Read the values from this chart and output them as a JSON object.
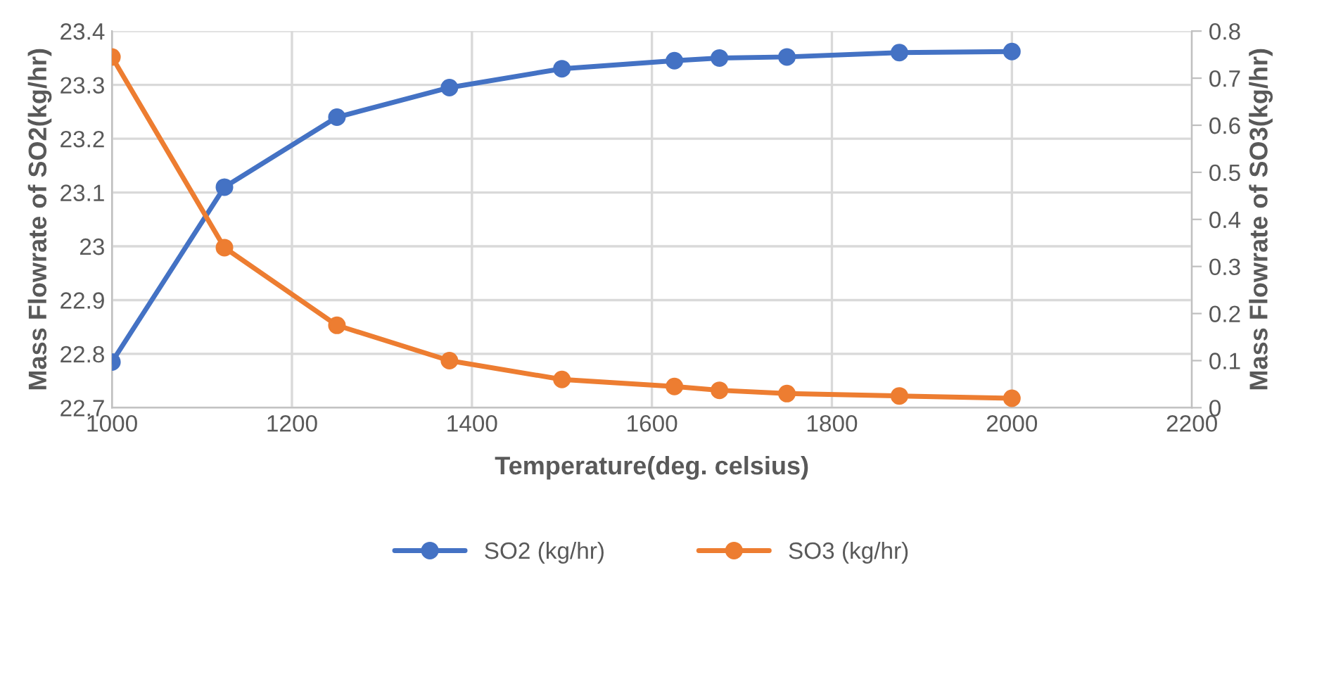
{
  "chart_data": {
    "type": "line",
    "xlabel": "Temperature(deg. celsius)",
    "ylabel": "Mass Flowrate of SO2(kg/hr)",
    "y2label": "Mass Flowrate of SO3(kg/hr)",
    "x": [
      1000,
      1125,
      1250,
      1375,
      1500,
      1625,
      1675,
      1750,
      1875,
      2000
    ],
    "series": [
      {
        "name": "SO2 (kg/hr)",
        "color": "#4472c4",
        "values": [
          22.785,
          23.11,
          23.24,
          23.295,
          23.33,
          23.345,
          23.35,
          23.352,
          23.36,
          23.362
        ]
      },
      {
        "name": "SO3 (kg/hr)",
        "color": "#ed7d31",
        "axis": "y2",
        "values": [
          0.745,
          0.34,
          0.175,
          0.1,
          0.06,
          0.045,
          0.037,
          0.03,
          0.025,
          0.02
        ]
      }
    ],
    "xlim": [
      1000,
      2200
    ],
    "xticks": [
      1000,
      1200,
      1400,
      1600,
      1800,
      2000,
      2200
    ],
    "ylim": [
      22.7,
      23.4
    ],
    "yticks": [
      22.7,
      22.8,
      22.9,
      23,
      23.1,
      23.2,
      23.3,
      23.4
    ],
    "y2lim": [
      0,
      0.8
    ],
    "y2ticks": [
      0,
      0.1,
      0.2,
      0.3,
      0.4,
      0.5,
      0.6,
      0.7,
      0.8
    ],
    "grid": true,
    "legend": "bottom",
    "marker": "circle",
    "line_style": "solid"
  }
}
